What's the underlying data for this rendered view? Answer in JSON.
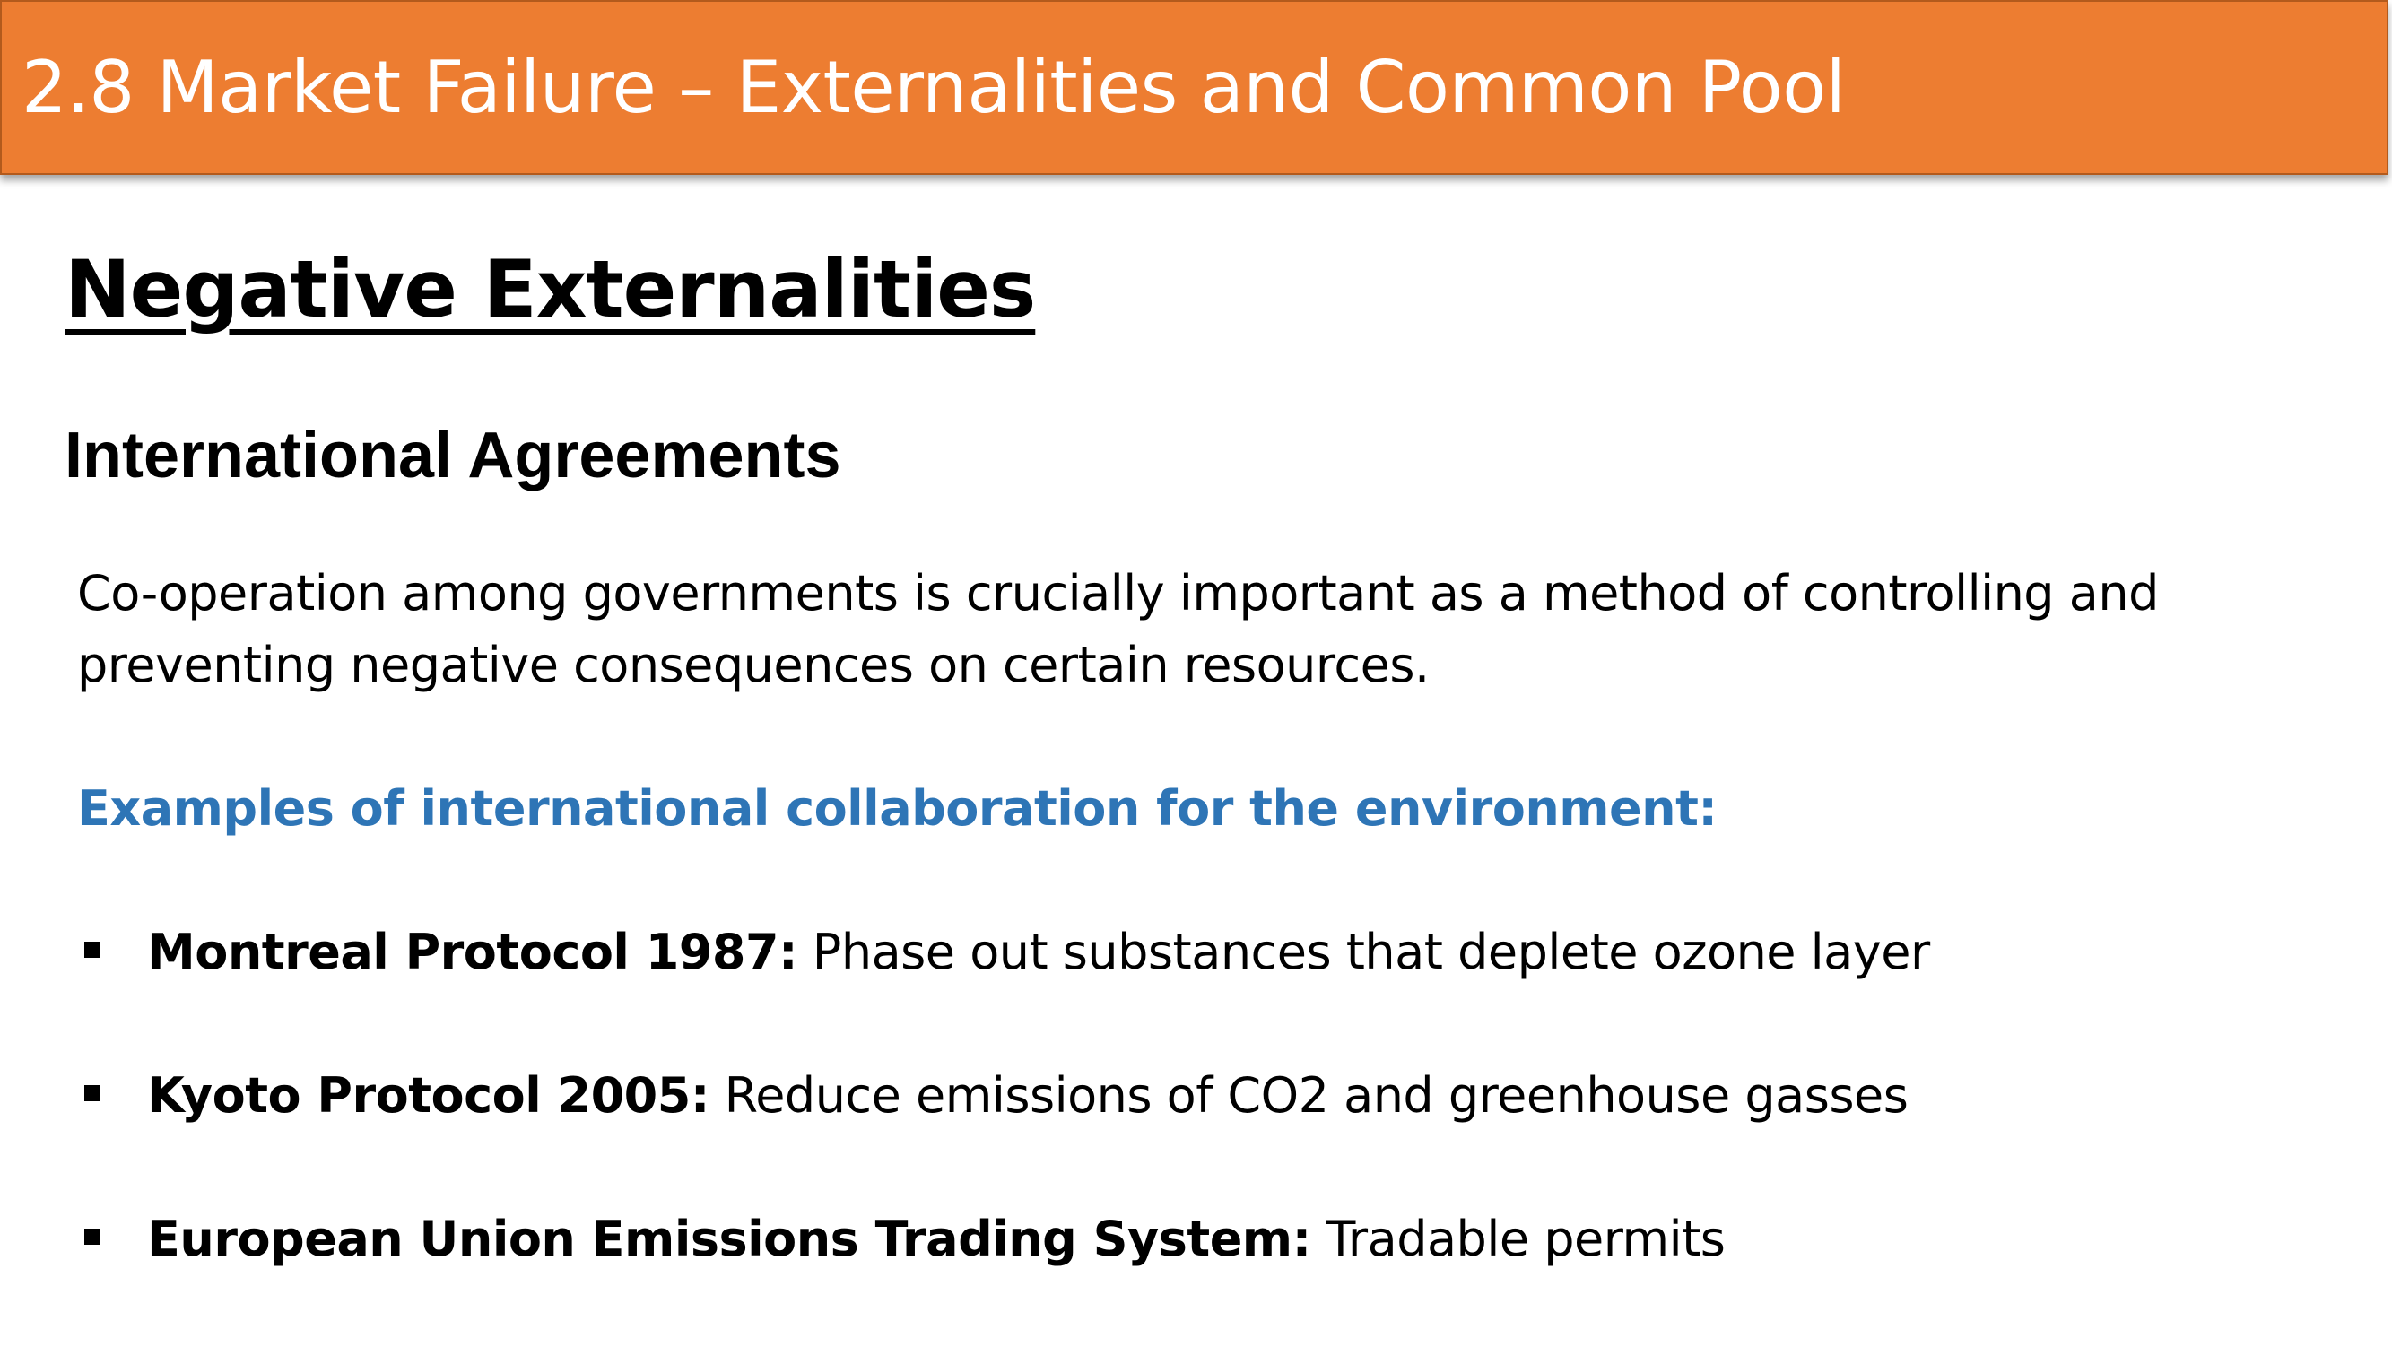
{
  "header": {
    "title": "2.8 Market Failure – Externalities and Common Pool",
    "background_color": "#ED7D31"
  },
  "section": {
    "heading": "Negative Externalities",
    "subheading": "International Agreements"
  },
  "intro": {
    "text": "Co-operation among governments is crucially important as a method of controlling and preventing negative consequences on certain resources."
  },
  "examples": {
    "heading": "Examples of international collaboration for the environment:",
    "heading_color": "#2E75B6",
    "items": [
      {
        "term": "Montreal Protocol 1987:",
        "description": " Phase out substances that deplete ozone layer"
      },
      {
        "term": "Kyoto Protocol 2005:",
        "description": " Reduce emissions of CO2 and greenhouse gasses"
      },
      {
        "term": "European Union Emissions Trading System:",
        "description": " Tradable permits"
      }
    ]
  }
}
